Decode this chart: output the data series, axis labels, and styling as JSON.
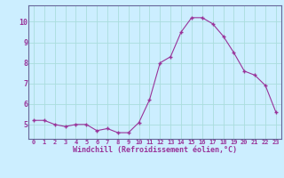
{
  "x": [
    0,
    1,
    2,
    3,
    4,
    5,
    6,
    7,
    8,
    9,
    10,
    11,
    12,
    13,
    14,
    15,
    16,
    17,
    18,
    19,
    20,
    21,
    22,
    23
  ],
  "y": [
    5.2,
    5.2,
    5.0,
    4.9,
    5.0,
    5.0,
    4.7,
    4.8,
    4.6,
    4.6,
    5.1,
    6.2,
    8.0,
    8.3,
    9.5,
    10.2,
    10.2,
    9.9,
    9.3,
    8.5,
    7.6,
    7.4,
    6.9,
    5.6
  ],
  "line_color": "#993399",
  "marker": "+",
  "marker_size": 3,
  "bg_color": "#cceeff",
  "grid_color": "#aadddd",
  "xlabel": "Windchill (Refroidissement éolien,°C)",
  "xlabel_color": "#993399",
  "tick_color": "#993399",
  "spine_color": "#666699",
  "ylim": [
    4.3,
    10.8
  ],
  "xlim": [
    -0.5,
    23.5
  ],
  "yticks": [
    5,
    6,
    7,
    8,
    9,
    10
  ],
  "xticks": [
    0,
    1,
    2,
    3,
    4,
    5,
    6,
    7,
    8,
    9,
    10,
    11,
    12,
    13,
    14,
    15,
    16,
    17,
    18,
    19,
    20,
    21,
    22,
    23
  ]
}
